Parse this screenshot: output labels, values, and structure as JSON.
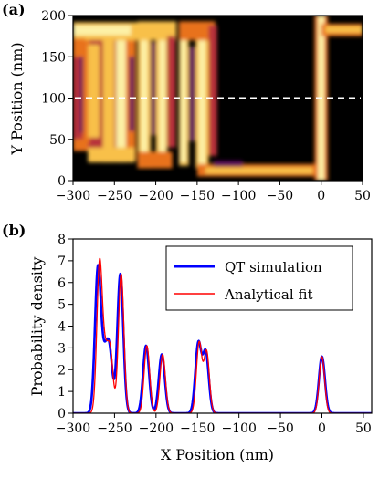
{
  "chart_data": [
    {
      "type": "heatmap",
      "panel_label": "(a)",
      "xlabel": "",
      "ylabel": "Y Position (nm)",
      "xlim": [
        -300,
        50
      ],
      "ylim": [
        0,
        200
      ],
      "x_ticks": [
        "−300",
        "−250",
        "−200",
        "−150",
        "−100",
        "−50",
        "0",
        "50"
      ],
      "y_ticks": [
        "0",
        "50",
        "100",
        "150",
        "200"
      ],
      "cut_line_y": 100,
      "colormap": [
        "#000000",
        "#5a0c5c",
        "#b8303a",
        "#e8721c",
        "#f8c04a",
        "#fdf1a6"
      ]
    },
    {
      "type": "line",
      "panel_label": "(b)",
      "xlabel": "X Position (nm)",
      "ylabel": "Probability density",
      "xlim": [
        -300,
        60
      ],
      "ylim": [
        0,
        8
      ],
      "x_ticks": [
        "−300",
        "−250",
        "−200",
        "−150",
        "−100",
        "−50",
        "0",
        "50"
      ],
      "y_ticks": [
        "0",
        "1",
        "2",
        "3",
        "4",
        "5",
        "6",
        "7",
        "8"
      ],
      "legend_position": "top-right",
      "series": [
        {
          "name": "QT simulation",
          "color": "#0000ff",
          "peaks": [
            [
              -270,
              6.8
            ],
            [
              -262,
              3.3
            ],
            [
              -256,
              3.2
            ],
            [
              -243,
              6.4
            ],
            [
              -212,
              3.1
            ],
            [
              -193,
              2.7
            ],
            [
              -149,
              3.3
            ],
            [
              -140,
              2.9
            ],
            [
              0,
              2.6
            ]
          ]
        },
        {
          "name": "Analytical fit",
          "color": "#ff0000",
          "peaks": [
            [
              -268,
              7.1
            ],
            [
              -261,
              3.5
            ],
            [
              -255,
              3.1
            ],
            [
              -242,
              6.4
            ],
            [
              -211,
              3.1
            ],
            [
              -192,
              2.7
            ],
            [
              -148,
              3.3
            ],
            [
              -139,
              2.9
            ],
            [
              0,
              2.6
            ]
          ]
        }
      ]
    }
  ]
}
